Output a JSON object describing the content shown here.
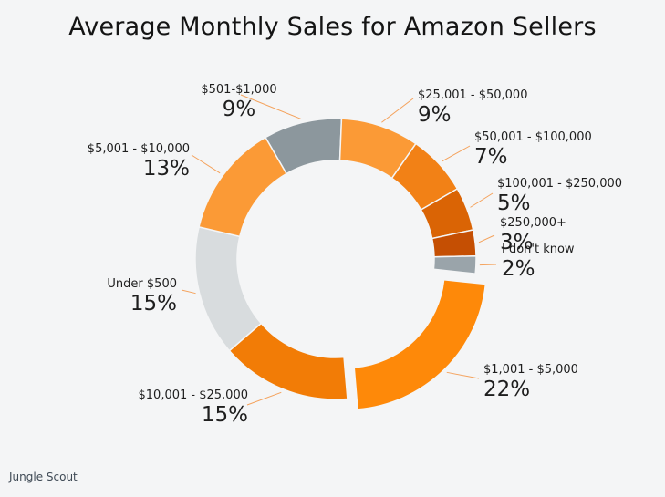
{
  "chart_data": {
    "type": "pie",
    "variant": "donut",
    "title": "Average Monthly Sales for Amazon Sellers",
    "slices": [
      {
        "label": "$501-$1,000",
        "value": 9,
        "value_label": "9%",
        "color": "#8c979d",
        "exploded": false
      },
      {
        "label": "$25,001 - $50,000",
        "value": 9,
        "value_label": "9%",
        "color": "#fb9a36",
        "exploded": false
      },
      {
        "label": "$50,001 - $100,000",
        "value": 7,
        "value_label": "7%",
        "color": "#f28116",
        "exploded": false
      },
      {
        "label": "$100,001 - $250,000",
        "value": 5,
        "value_label": "5%",
        "color": "#da6405",
        "exploded": false
      },
      {
        "label": "$250,000+",
        "value": 3,
        "value_label": "3%",
        "color": "#c54f03",
        "exploded": false
      },
      {
        "label": "I don't know",
        "value": 2,
        "value_label": "2%",
        "color": "#9aa4aa",
        "exploded": false
      },
      {
        "label": "$1,001 - $5,000",
        "value": 22,
        "value_label": "22%",
        "color": "#fe8909",
        "exploded": true
      },
      {
        "label": "$10,001 - $25,000",
        "value": 15,
        "value_label": "15%",
        "color": "#f27c06",
        "exploded": false
      },
      {
        "label": "Under $500",
        "value": 15,
        "value_label": "15%",
        "color": "#d8dcde",
        "exploded": false
      },
      {
        "label": "$5,001 - $10,000",
        "value": 13,
        "value_label": "13%",
        "color": "#fb9a36",
        "exploded": false
      }
    ]
  },
  "footer": {
    "brand": "Jungle Scout"
  }
}
